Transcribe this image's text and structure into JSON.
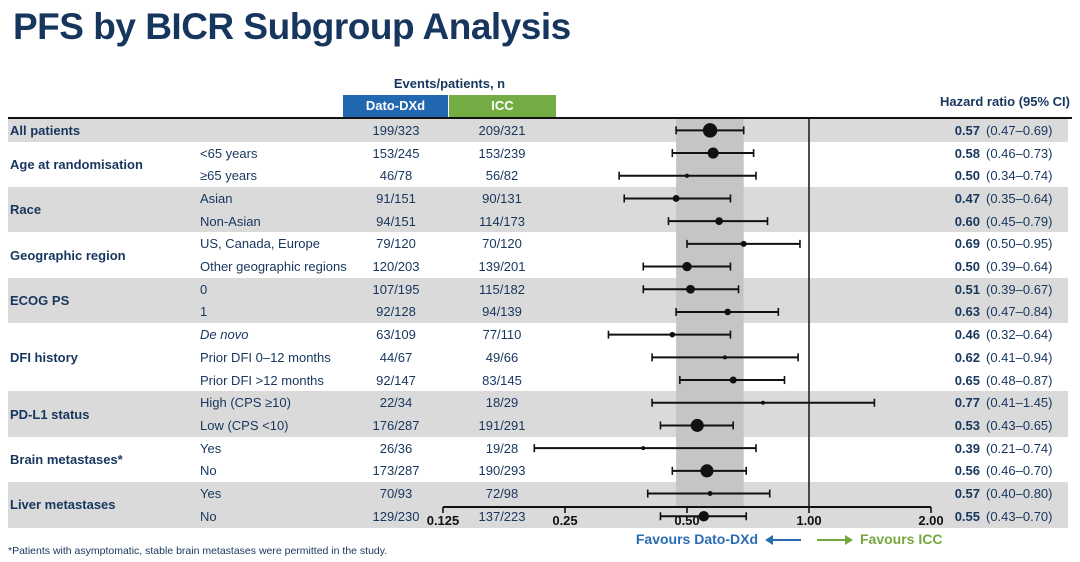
{
  "title": "PFS by BICR Subgroup Analysis",
  "header": {
    "events_label": "Events/patients, n",
    "arm1": "Dato-DXd",
    "arm2": "ICC",
    "hr_label": "Hazard ratio (95% CI)"
  },
  "footnote": "*Patients with asymptomatic, stable brain metastases were permitted in the study.",
  "colors": {
    "navy_text": "#17365D",
    "arm1_blue": "#2268B0",
    "arm2_green": "#74AC44",
    "stripe_gray": "#DADADA",
    "band_gray": "#C5C5C5",
    "marker_black": "#111111",
    "favours_blue": "#2A6CB3",
    "favours_green": "#74A73E"
  },
  "chart_data": {
    "type": "forest",
    "x_scale": "log2",
    "x_axis_ticks": [
      0.125,
      0.25,
      0.5,
      1.0,
      2.0
    ],
    "x_axis_tick_labels": [
      "0.125",
      "0.25",
      "0.50",
      "1.00",
      "2.00"
    ],
    "reference_line": 1.0,
    "shaded_band": [
      0.47,
      0.69
    ],
    "favours_left": "Favours Dato-DXd",
    "favours_right": "Favours ICC",
    "groups": [
      {
        "label": "All patients",
        "shaded": true,
        "rows": [
          {
            "subgroup": "",
            "dato": "199/323",
            "icc": "209/321",
            "hr": 0.57,
            "lo": 0.47,
            "hi": 0.69,
            "hr_text": "0.57",
            "ci_text": "(0.47–0.69)"
          }
        ]
      },
      {
        "label": "Age at randomisation",
        "shaded": false,
        "rows": [
          {
            "subgroup": "<65 years",
            "dato": "153/245",
            "icc": "153/239",
            "hr": 0.58,
            "lo": 0.46,
            "hi": 0.73,
            "hr_text": "0.58",
            "ci_text": "(0.46–0.73)"
          },
          {
            "subgroup": "≥65 years",
            "dato": "46/78",
            "icc": "56/82",
            "hr": 0.5,
            "lo": 0.34,
            "hi": 0.74,
            "hr_text": "0.50",
            "ci_text": "(0.34–0.74)"
          }
        ]
      },
      {
        "label": "Race",
        "shaded": true,
        "rows": [
          {
            "subgroup": "Asian",
            "dato": "91/151",
            "icc": "90/131",
            "hr": 0.47,
            "lo": 0.35,
            "hi": 0.64,
            "hr_text": "0.47",
            "ci_text": "(0.35–0.64)"
          },
          {
            "subgroup": "Non-Asian",
            "dato": "94/151",
            "icc": "114/173",
            "hr": 0.6,
            "lo": 0.45,
            "hi": 0.79,
            "hr_text": "0.60",
            "ci_text": "(0.45–0.79)"
          }
        ]
      },
      {
        "label": "Geographic region",
        "shaded": false,
        "rows": [
          {
            "subgroup": "US, Canada, Europe",
            "dato": "79/120",
            "icc": "70/120",
            "hr": 0.69,
            "lo": 0.5,
            "hi": 0.95,
            "hr_text": "0.69",
            "ci_text": "(0.50–0.95)"
          },
          {
            "subgroup": "Other geographic regions",
            "dato": "120/203",
            "icc": "139/201",
            "hr": 0.5,
            "lo": 0.39,
            "hi": 0.64,
            "hr_text": "0.50",
            "ci_text": "(0.39–0.64)"
          }
        ]
      },
      {
        "label": "ECOG PS",
        "shaded": true,
        "rows": [
          {
            "subgroup": "0",
            "dato": "107/195",
            "icc": "115/182",
            "hr": 0.51,
            "lo": 0.39,
            "hi": 0.67,
            "hr_text": "0.51",
            "ci_text": "(0.39–0.67)"
          },
          {
            "subgroup": "1",
            "dato": "92/128",
            "icc": "94/139",
            "hr": 0.63,
            "lo": 0.47,
            "hi": 0.84,
            "hr_text": "0.63",
            "ci_text": "(0.47–0.84)"
          }
        ]
      },
      {
        "label": "DFI history",
        "shaded": false,
        "rows": [
          {
            "subgroup": "De novo",
            "italic": true,
            "dato": "63/109",
            "icc": "77/110",
            "hr": 0.46,
            "lo": 0.32,
            "hi": 0.64,
            "hr_text": "0.46",
            "ci_text": "(0.32–0.64)"
          },
          {
            "subgroup": "Prior DFI 0–12 months",
            "dato": "44/67",
            "icc": "49/66",
            "hr": 0.62,
            "lo": 0.41,
            "hi": 0.94,
            "hr_text": "0.62",
            "ci_text": "(0.41–0.94)"
          },
          {
            "subgroup": "Prior DFI >12 months",
            "dato": "92/147",
            "icc": "83/145",
            "hr": 0.65,
            "lo": 0.48,
            "hi": 0.87,
            "hr_text": "0.65",
            "ci_text": "(0.48–0.87)"
          }
        ]
      },
      {
        "label": "PD-L1 status",
        "shaded": true,
        "rows": [
          {
            "subgroup": "High (CPS ≥10)",
            "dato": "22/34",
            "icc": "18/29",
            "hr": 0.77,
            "lo": 0.41,
            "hi": 1.45,
            "hr_text": "0.77",
            "ci_text": "(0.41–1.45)"
          },
          {
            "subgroup": "Low (CPS <10)",
            "dato": "176/287",
            "icc": "191/291",
            "hr": 0.53,
            "lo": 0.43,
            "hi": 0.65,
            "hr_text": "0.53",
            "ci_text": "(0.43–0.65)"
          }
        ]
      },
      {
        "label": "Brain metastases*",
        "shaded": false,
        "rows": [
          {
            "subgroup": "Yes",
            "dato": "26/36",
            "icc": "19/28",
            "hr": 0.39,
            "lo": 0.21,
            "hi": 0.74,
            "hr_text": "0.39",
            "ci_text": "(0.21–0.74)"
          },
          {
            "subgroup": "No",
            "dato": "173/287",
            "icc": "190/293",
            "hr": 0.56,
            "lo": 0.46,
            "hi": 0.7,
            "hr_text": "0.56",
            "ci_text": "(0.46–0.70)"
          }
        ]
      },
      {
        "label": "Liver metastases",
        "shaded": true,
        "rows": [
          {
            "subgroup": "Yes",
            "dato": "70/93",
            "icc": "72/98",
            "hr": 0.57,
            "lo": 0.4,
            "hi": 0.8,
            "hr_text": "0.57",
            "ci_text": "(0.40–0.80)"
          },
          {
            "subgroup": "No",
            "dato": "129/230",
            "icc": "137/223",
            "hr": 0.55,
            "lo": 0.43,
            "hi": 0.7,
            "hr_text": "0.55",
            "ci_text": "(0.43–0.70)"
          }
        ]
      }
    ]
  }
}
